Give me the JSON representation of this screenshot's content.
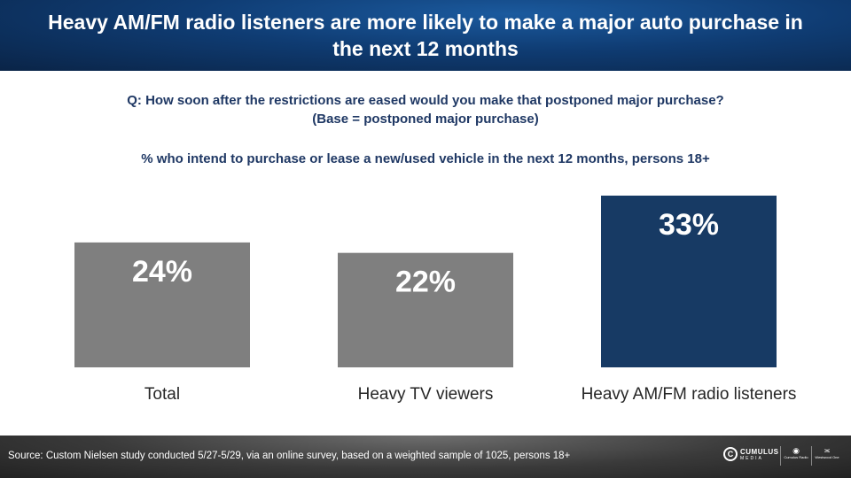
{
  "header": {
    "title": "Heavy AM/FM radio listeners are more likely to make a major auto purchase in the next 12 months"
  },
  "question": {
    "line1": "Q: How soon after the restrictions are eased would you make that postponed major purchase?",
    "line2": "(Base = postponed major purchase)"
  },
  "subtitle": "% who intend to purchase or lease a new/used vehicle in the next 12 months, persons 18+",
  "chart_data": {
    "type": "bar",
    "title": "% who intend to purchase or lease a new/used vehicle in the next 12 months, persons 18+",
    "categories": [
      "Total",
      "Heavy TV viewers",
      "Heavy AM/FM radio listeners"
    ],
    "values": [
      24,
      22,
      33
    ],
    "value_labels": [
      "24%",
      "22%",
      "33%"
    ],
    "colors": [
      "#7f7f7f",
      "#7f7f7f",
      "#173a64"
    ],
    "ylim": [
      0,
      35
    ],
    "grid": false,
    "xlabel": "",
    "ylabel": ""
  },
  "footer": {
    "source": "Source: Custom Nielsen study conducted 5/27-5/29,  via an online survey, based on a weighted sample of 1025, persons 18+",
    "logos": {
      "cumulus": {
        "main": "CUMULUS",
        "sub": "MEDIA"
      },
      "cumulus_radio": "Cumulus Radio",
      "westwood": "Westwood One"
    }
  }
}
